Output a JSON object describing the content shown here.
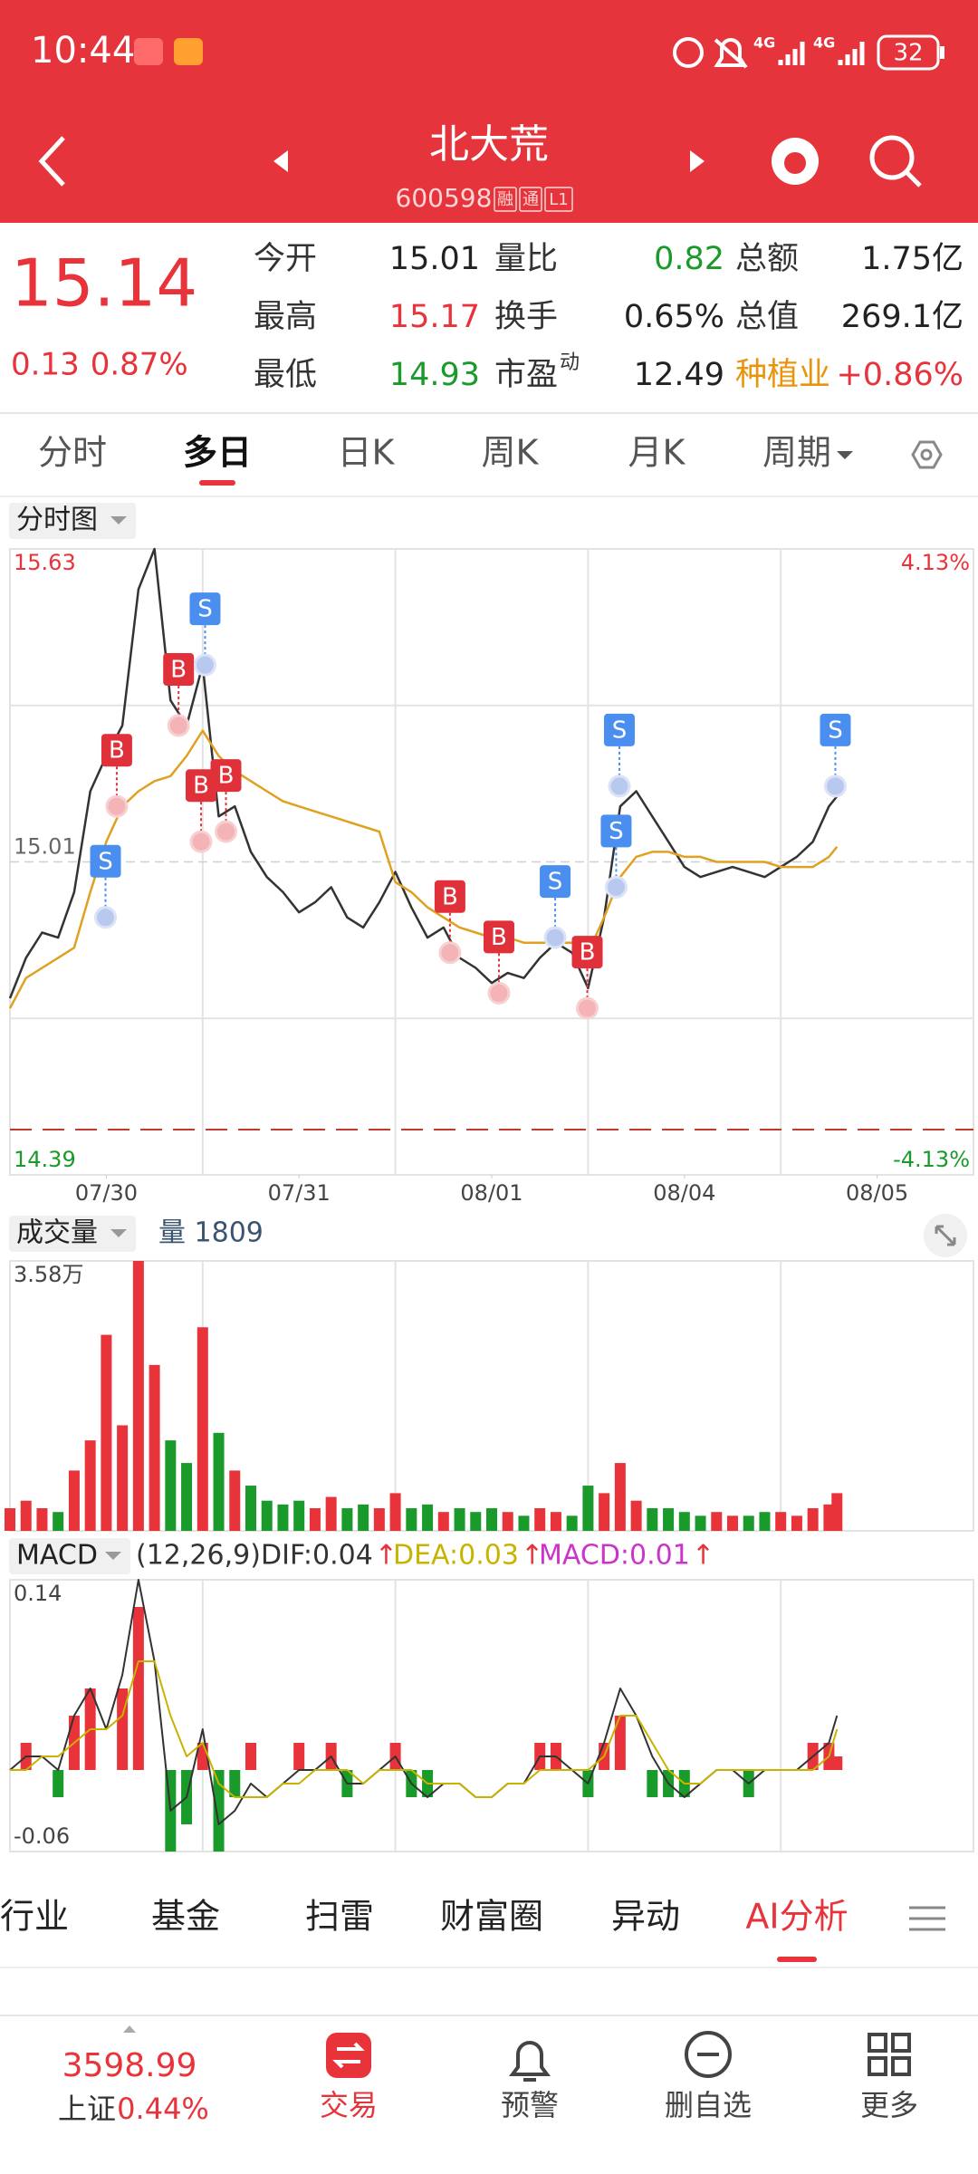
{
  "status_bar": {
    "time": "10:44",
    "network_1": "4G",
    "network_2": "4G",
    "battery": "32"
  },
  "header": {
    "title": "北大荒",
    "code": "600598",
    "badges": [
      "融",
      "通",
      "L1"
    ]
  },
  "quote": {
    "price": "15.14",
    "change": "0.13",
    "change_pct": "0.87%",
    "rows": [
      [
        {
          "label": "今开",
          "value": "15.01",
          "color": "#222222"
        },
        {
          "label": "量比",
          "value": "0.82",
          "color": "#1a9a2a"
        },
        {
          "label": "总额",
          "value": "1.75亿",
          "color": "#222222"
        }
      ],
      [
        {
          "label": "最高",
          "value": "15.17",
          "color": "#e8333a"
        },
        {
          "label": "换手",
          "value": "0.65%",
          "color": "#222222"
        },
        {
          "label": "总值",
          "value": "269.1亿",
          "color": "#222222"
        }
      ],
      [
        {
          "label": "最低",
          "value": "14.93",
          "color": "#1a9a2a"
        },
        {
          "label": "市盈",
          "sup": "动",
          "value": "12.49",
          "color": "#222222"
        },
        {
          "label": "种植业",
          "label_color": "#e8940c",
          "value": "+0.86%",
          "color": "#e8333a"
        }
      ]
    ]
  },
  "tabs": {
    "items": [
      "分时",
      "多日",
      "日K",
      "周K",
      "月K",
      "周期"
    ],
    "active": 1
  },
  "chart_data": [
    {
      "type": "line",
      "title": "分时图",
      "x": [
        0,
        20,
        40,
        60,
        80,
        100,
        120,
        140,
        160,
        180,
        200,
        220,
        240,
        260,
        280,
        300,
        320,
        340,
        360,
        380,
        400,
        420,
        440,
        460,
        480,
        500,
        520,
        540,
        560,
        580,
        600,
        620,
        640,
        660,
        680,
        700,
        720,
        740,
        760,
        780,
        800,
        820,
        840,
        860,
        880,
        900,
        920,
        940,
        960,
        980,
        1000,
        1020,
        1030
      ],
      "xlim": [
        0,
        1200
      ],
      "xticks": [
        {
          "value": 120,
          "label": "07/30"
        },
        {
          "value": 360,
          "label": "07/31"
        },
        {
          "value": 600,
          "label": "08/01"
        },
        {
          "value": 840,
          "label": "08/04"
        },
        {
          "value": 1080,
          "label": "08/05"
        }
      ],
      "ylim": [
        14.39,
        15.63
      ],
      "yticks": [
        14.39,
        15.01,
        15.63
      ],
      "y2lim": [
        -4.13,
        4.13
      ],
      "y2ticks": [
        {
          "value": -4.13,
          "label": "-4.13%"
        },
        {
          "value": 4.13,
          "label": "4.13%"
        }
      ],
      "series": [
        {
          "color": "#333333",
          "values": [
            14.74,
            14.82,
            14.87,
            14.86,
            14.95,
            15.15,
            15.22,
            15.28,
            15.55,
            15.63,
            15.33,
            15.28,
            15.4,
            15.1,
            15.12,
            15.03,
            14.98,
            14.95,
            14.91,
            14.93,
            14.96,
            14.9,
            14.88,
            14.93,
            14.99,
            14.92,
            14.86,
            14.88,
            14.82,
            14.8,
            14.77,
            14.79,
            14.78,
            14.82,
            14.85,
            14.83,
            14.76,
            14.9,
            15.12,
            15.15,
            15.1,
            15.05,
            15.0,
            14.98,
            14.99,
            15.0,
            14.99,
            14.98,
            15.0,
            15.02,
            15.05,
            15.12,
            15.14
          ]
        },
        {
          "color": "#e0a020",
          "values": [
            14.72,
            14.78,
            14.8,
            14.82,
            14.84,
            14.95,
            15.05,
            15.12,
            15.15,
            15.17,
            15.18,
            15.22,
            15.27,
            15.22,
            15.19,
            15.17,
            15.15,
            15.13,
            15.12,
            15.11,
            15.1,
            15.09,
            15.08,
            15.07,
            14.97,
            14.95,
            14.92,
            14.9,
            14.88,
            14.87,
            14.86,
            14.86,
            14.85,
            14.85,
            14.85,
            14.85,
            14.83,
            14.9,
            14.98,
            15.02,
            15.03,
            15.03,
            15.02,
            15.02,
            15.01,
            15.01,
            15.01,
            15.01,
            15.0,
            15.0,
            15.0,
            15.02,
            15.04
          ]
        }
      ],
      "signals": [
        {
          "label": "S",
          "x": 119,
          "value": 14.9
        },
        {
          "label": "B",
          "x": 133,
          "value": 15.12
        },
        {
          "label": "B",
          "x": 210,
          "value": 15.28
        },
        {
          "label": "B",
          "x": 238,
          "value": 15.05
        },
        {
          "label": "S",
          "x": 243,
          "value": 15.4
        },
        {
          "label": "B",
          "x": 269,
          "value": 15.07
        },
        {
          "label": "B",
          "x": 548,
          "value": 14.83
        },
        {
          "label": "B",
          "x": 609,
          "value": 14.75
        },
        {
          "label": "S",
          "x": 679,
          "value": 14.86
        },
        {
          "label": "B",
          "x": 719,
          "value": 14.72
        },
        {
          "label": "S",
          "x": 755,
          "value": 14.96
        },
        {
          "label": "S",
          "x": 759,
          "value": 15.16
        },
        {
          "label": "S",
          "x": 1028,
          "value": 15.16
        }
      ],
      "up_color": "#e8333a",
      "down_color": "#1a9a2a"
    },
    {
      "type": "bar",
      "title": "成交量",
      "subtitle": "量 1809",
      "x": [
        0,
        20,
        40,
        60,
        80,
        100,
        120,
        140,
        160,
        180,
        200,
        220,
        240,
        260,
        280,
        300,
        320,
        340,
        360,
        380,
        400,
        420,
        440,
        460,
        480,
        500,
        520,
        540,
        560,
        580,
        600,
        620,
        640,
        660,
        680,
        700,
        720,
        740,
        760,
        780,
        800,
        820,
        840,
        860,
        880,
        900,
        920,
        940,
        960,
        980,
        1000,
        1020,
        1030
      ],
      "xlim": [
        0,
        1200
      ],
      "ylim": [
        0,
        35800
      ],
      "yticks": [
        {
          "value": 35800,
          "label": "3.58万"
        }
      ],
      "values": [
        3000,
        4000,
        3000,
        2500,
        8000,
        12000,
        26000,
        14000,
        35800,
        22000,
        12000,
        9000,
        27000,
        13000,
        8000,
        6000,
        4000,
        3500,
        4000,
        3000,
        4500,
        3000,
        3500,
        3000,
        5000,
        3000,
        3500,
        2500,
        3000,
        2500,
        3000,
        2500,
        2000,
        3000,
        2500,
        2000,
        6000,
        5000,
        9000,
        4000,
        3000,
        3000,
        2500,
        2000,
        2500,
        2000,
        2000,
        2500,
        2500,
        2000,
        3000,
        3500,
        5000
      ],
      "up_color": "#e8333a",
      "down_color": "#1a9a2a"
    },
    {
      "type": "macd",
      "title": "MACD",
      "params": "(12,26,9)",
      "arrow": "↑",
      "x": [
        0,
        20,
        40,
        60,
        80,
        100,
        120,
        140,
        160,
        180,
        200,
        220,
        240,
        260,
        280,
        300,
        320,
        340,
        360,
        380,
        400,
        420,
        440,
        460,
        480,
        500,
        520,
        540,
        560,
        580,
        600,
        620,
        640,
        660,
        680,
        700,
        720,
        740,
        760,
        780,
        800,
        820,
        840,
        860,
        880,
        900,
        920,
        940,
        960,
        980,
        1000,
        1020,
        1030
      ],
      "xlim": [
        0,
        1200
      ],
      "ylim": [
        -0.06,
        0.14
      ],
      "yticks": [
        -0.06,
        0.14
      ],
      "series": [
        {
          "label": "DIF:0.04",
          "kind": "line",
          "color": "#333333",
          "values": [
            0.0,
            0.01,
            0.01,
            0.0,
            0.04,
            0.06,
            0.03,
            0.07,
            0.14,
            0.08,
            -0.03,
            -0.02,
            0.03,
            -0.04,
            -0.03,
            -0.01,
            -0.02,
            -0.01,
            0.0,
            0.0,
            0.01,
            -0.01,
            -0.01,
            0.0,
            0.01,
            -0.01,
            -0.02,
            -0.01,
            -0.01,
            -0.02,
            -0.02,
            -0.01,
            -0.01,
            0.01,
            0.01,
            0.0,
            -0.01,
            0.02,
            0.06,
            0.04,
            0.01,
            -0.01,
            -0.02,
            -0.01,
            0.0,
            0.0,
            -0.01,
            0.0,
            0.0,
            0.0,
            0.01,
            0.02,
            0.04
          ]
        },
        {
          "label": "DEA:0.03",
          "kind": "line",
          "color": "#c8b400",
          "values": [
            0.0,
            0.0,
            0.01,
            0.01,
            0.02,
            0.03,
            0.03,
            0.04,
            0.08,
            0.08,
            0.04,
            0.01,
            0.02,
            -0.01,
            -0.02,
            -0.02,
            -0.02,
            -0.01,
            -0.01,
            0.0,
            0.0,
            0.0,
            -0.01,
            0.0,
            0.0,
            0.0,
            -0.01,
            -0.01,
            -0.01,
            -0.02,
            -0.02,
            -0.01,
            -0.01,
            0.0,
            0.0,
            0.0,
            0.0,
            0.01,
            0.04,
            0.04,
            0.02,
            0.0,
            -0.01,
            -0.01,
            0.0,
            0.0,
            0.0,
            0.0,
            0.0,
            0.0,
            0.0,
            0.01,
            0.03
          ]
        },
        {
          "label": "MACD:0.01",
          "kind": "bar",
          "color": "#cc33cc",
          "values": [
            0.0,
            0.02,
            0.0,
            -0.02,
            0.04,
            0.06,
            0.0,
            0.06,
            0.12,
            0.0,
            -0.06,
            -0.04,
            0.02,
            -0.06,
            -0.02,
            0.02,
            0.0,
            0.0,
            0.02,
            0.0,
            0.02,
            -0.02,
            0.0,
            0.0,
            0.02,
            -0.02,
            -0.02,
            0.0,
            0.0,
            0.0,
            0.0,
            0.0,
            0.0,
            0.02,
            0.02,
            0.0,
            -0.02,
            0.02,
            0.04,
            0.0,
            -0.02,
            -0.02,
            -0.02,
            0.0,
            0.0,
            0.0,
            -0.02,
            0.0,
            0.0,
            0.0,
            0.02,
            0.02,
            0.01
          ]
        }
      ],
      "up_color": "#e8333a",
      "down_color": "#1a9a2a"
    }
  ],
  "bottom_tabs": {
    "items": [
      "行业",
      "基金",
      "扫雷",
      "财富圈",
      "异动",
      "AI分析"
    ],
    "active": 5
  },
  "nav": {
    "index_value": "3598.99",
    "index_name": "上证",
    "index_change": "0.44%",
    "items": [
      "交易",
      "预警",
      "删自选",
      "更多"
    ]
  }
}
